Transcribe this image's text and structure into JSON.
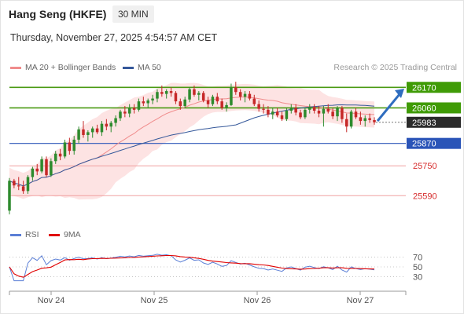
{
  "header": {
    "title": "Hang Seng (HKFE)",
    "timeframe": "30 MIN",
    "timestamp": "Thursday, November 27, 2025 4:54:57 AM CET"
  },
  "legend": {
    "ma20": "MA 20 + Bollinger Bands",
    "ma50": "MA 50",
    "rsi": "RSI",
    "ma9": "9MA",
    "colors": {
      "ma20": "#f08c8c",
      "ma50": "#35589a",
      "rsi": "#5b7fd6",
      "ma9": "#e00000"
    }
  },
  "credit": "Research © 2025 Trading Central",
  "chart_data": [
    {
      "type": "candlestick",
      "ylim": [
        25440,
        26230
      ],
      "x_labels": [
        "Nov 24",
        "Nov 25",
        "Nov 26",
        "Nov 27"
      ],
      "levels": [
        {
          "value": 26170,
          "label": "26170",
          "kind": "resistance"
        },
        {
          "value": 26060,
          "label": "26060",
          "kind": "resistance"
        },
        {
          "value": 25983,
          "label": "25983",
          "kind": "last-price"
        },
        {
          "value": 25870,
          "label": "25870",
          "kind": "pivot"
        },
        {
          "value": 25750,
          "label": "25750",
          "kind": "support"
        },
        {
          "value": 25590,
          "label": "25590",
          "kind": "support"
        }
      ],
      "candles": [
        [
          25510,
          25685,
          25490,
          25670
        ],
        [
          25670,
          25680,
          25630,
          25645
        ],
        [
          25645,
          25690,
          25620,
          25640
        ],
        [
          25640,
          25670,
          25600,
          25615
        ],
        [
          25615,
          25700,
          25600,
          25690
        ],
        [
          25690,
          25745,
          25670,
          25735
        ],
        [
          25735,
          25760,
          25700,
          25720
        ],
        [
          25720,
          25800,
          25710,
          25785
        ],
        [
          25785,
          25800,
          25690,
          25700
        ],
        [
          25700,
          25790,
          25690,
          25775
        ],
        [
          25775,
          25830,
          25760,
          25815
        ],
        [
          25815,
          25840,
          25780,
          25800
        ],
        [
          25800,
          25890,
          25790,
          25875
        ],
        [
          25875,
          25900,
          25810,
          25830
        ],
        [
          25830,
          25910,
          25810,
          25890
        ],
        [
          25890,
          25960,
          25870,
          25945
        ],
        [
          25945,
          25990,
          25900,
          25915
        ],
        [
          25915,
          25940,
          25880,
          25930
        ],
        [
          25930,
          25960,
          25900,
          25950
        ],
        [
          25950,
          25970,
          25920,
          25930
        ],
        [
          25930,
          25990,
          25910,
          25975
        ],
        [
          25975,
          26000,
          25940,
          25960
        ],
        [
          25960,
          25990,
          25930,
          25980
        ],
        [
          25980,
          26020,
          25960,
          26005
        ],
        [
          26005,
          26050,
          25990,
          26040
        ],
        [
          26040,
          26070,
          26010,
          26030
        ],
        [
          26030,
          26080,
          26010,
          26060
        ],
        [
          26060,
          26080,
          26030,
          26050
        ],
        [
          26050,
          26110,
          26040,
          26095
        ],
        [
          26095,
          26120,
          26070,
          26085
        ],
        [
          26085,
          26110,
          26060,
          26100
        ],
        [
          26100,
          26130,
          26080,
          26110
        ],
        [
          26110,
          26160,
          26090,
          26145
        ],
        [
          26145,
          26180,
          26120,
          26135
        ],
        [
          26135,
          26160,
          26110,
          26150
        ],
        [
          26150,
          26170,
          26120,
          26140
        ],
        [
          26140,
          26150,
          26080,
          26095
        ],
        [
          26095,
          26110,
          26050,
          26070
        ],
        [
          26070,
          26120,
          26060,
          26105
        ],
        [
          26105,
          26170,
          26090,
          26160
        ],
        [
          26160,
          26180,
          26120,
          26130
        ],
        [
          26130,
          26150,
          26100,
          26140
        ],
        [
          26140,
          26150,
          26090,
          26100
        ],
        [
          26100,
          26120,
          26060,
          26080
        ],
        [
          26080,
          26130,
          26070,
          26120
        ],
        [
          26120,
          26140,
          26080,
          26095
        ],
        [
          26095,
          26110,
          26050,
          26060
        ],
        [
          26060,
          26090,
          26040,
          26075
        ],
        [
          26075,
          26190,
          26070,
          26170
        ],
        [
          26170,
          26200,
          26130,
          26145
        ],
        [
          26145,
          26160,
          26100,
          26120
        ],
        [
          26120,
          26150,
          26090,
          26135
        ],
        [
          26135,
          26150,
          26100,
          26110
        ],
        [
          26110,
          26130,
          26070,
          26080
        ],
        [
          26080,
          26100,
          26040,
          26055
        ],
        [
          26055,
          26080,
          26030,
          26050
        ],
        [
          26050,
          26070,
          26010,
          26025
        ],
        [
          26025,
          26060,
          26000,
          26040
        ],
        [
          26040,
          26060,
          26010,
          26020
        ],
        [
          26020,
          26040,
          25990,
          26000
        ],
        [
          26000,
          26060,
          25990,
          26045
        ],
        [
          26045,
          26080,
          26030,
          26060
        ],
        [
          26060,
          26080,
          26020,
          26035
        ],
        [
          26035,
          26050,
          26000,
          26010
        ],
        [
          26010,
          26060,
          26000,
          26050
        ],
        [
          26050,
          26080,
          26030,
          26065
        ],
        [
          26065,
          26080,
          26030,
          26045
        ],
        [
          26045,
          26070,
          26010,
          26030
        ],
        [
          26030,
          26070,
          25960,
          26055
        ],
        [
          26055,
          26080,
          26030,
          26040
        ],
        [
          26040,
          26060,
          26000,
          26015
        ],
        [
          26015,
          26070,
          25990,
          26060
        ],
        [
          26060,
          26070,
          25980,
          26000
        ],
        [
          26000,
          26030,
          25930,
          25960
        ],
        [
          25960,
          26050,
          25950,
          26040
        ],
        [
          26040,
          26060,
          26000,
          26010
        ],
        [
          26010,
          26040,
          25970,
          25990
        ],
        [
          25990,
          26020,
          25960,
          26005
        ],
        [
          26005,
          26030,
          25980,
          25995
        ],
        [
          25995,
          26010,
          25970,
          25983
        ]
      ]
    },
    {
      "type": "line",
      "ylim": [
        15,
        85
      ],
      "y_ticks": [
        70,
        50,
        30
      ],
      "series": [
        {
          "name": "RSI"
        },
        {
          "name": "9MA"
        }
      ]
    }
  ]
}
